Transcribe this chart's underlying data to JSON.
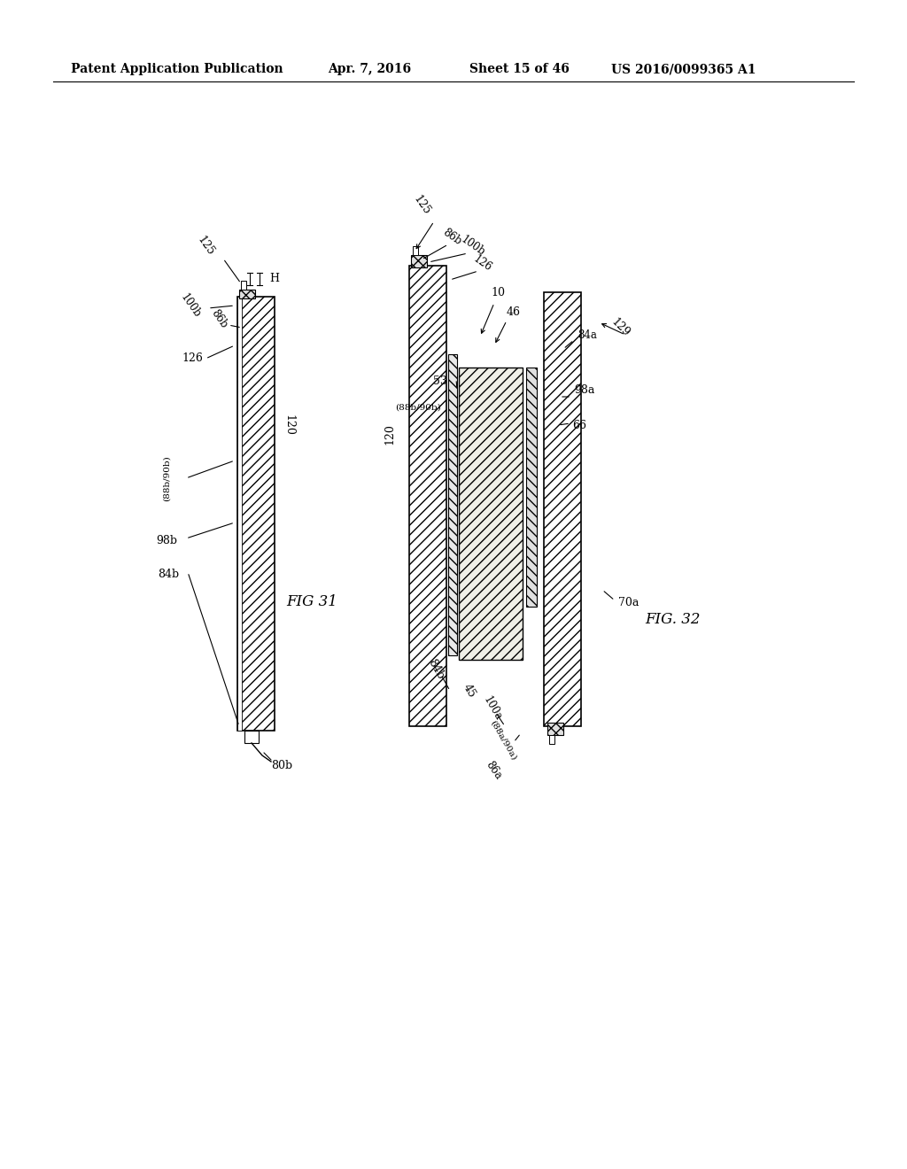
{
  "bg_color": "#ffffff",
  "header_text": "Patent Application Publication",
  "header_date": "Apr. 7, 2016",
  "header_sheet": "Sheet 15 of 46",
  "header_patent": "US 2016/0099365 A1"
}
